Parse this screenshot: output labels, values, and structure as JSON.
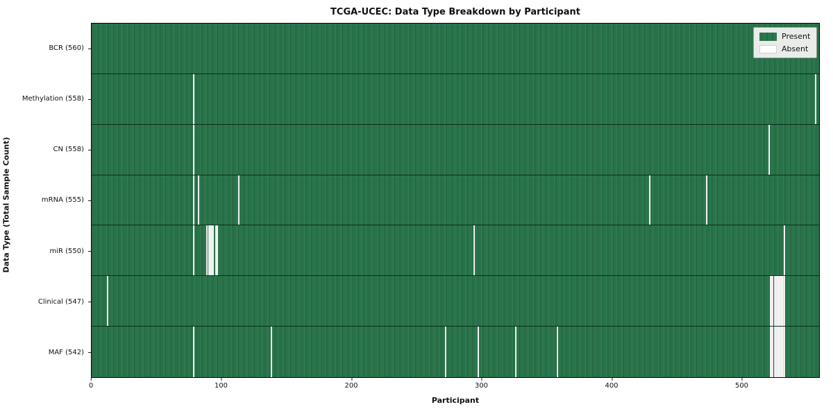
{
  "title": "TCGA-UCEC: Data Type Breakdown by Participant",
  "xlabel": "Participant",
  "ylabel": "Data Type (Total Sample Count)",
  "legend": {
    "present_label": "Present",
    "absent_label": "Absent"
  },
  "colors": {
    "present_green": "#2e7d4e",
    "present_green_dark": "#1e5e3a",
    "present_green_light": "#35855a",
    "absent_white": "#ffffff",
    "legend_bg": "#e9ece9",
    "axis_color": "#000000"
  },
  "x_ticks": [
    0,
    100,
    200,
    300,
    400,
    500
  ],
  "chart_data": {
    "type": "heatmap",
    "title": "TCGA-UCEC: Data Type Breakdown by Participant",
    "xlabel": "Participant",
    "ylabel": "Data Type (Total Sample Count)",
    "x_range": [
      0,
      560
    ],
    "total_participants": 560,
    "grid": false,
    "legend_position": "upper right",
    "legend_entries": [
      "Present",
      "Absent"
    ],
    "cell_states": {
      "present": 1,
      "absent": 0
    },
    "rows": [
      {
        "label": "BCR (560)",
        "data_type": "BCR",
        "present_count": 560,
        "absent_count": 0,
        "absent_participants": []
      },
      {
        "label": "Methylation (558)",
        "data_type": "Methylation",
        "present_count": 558,
        "absent_count": 2,
        "absent_participants": [
          78,
          557
        ]
      },
      {
        "label": "CN (558)",
        "data_type": "CN",
        "present_count": 558,
        "absent_count": 2,
        "absent_participants": [
          78,
          521
        ]
      },
      {
        "label": "mRNA (555)",
        "data_type": "mRNA",
        "present_count": 555,
        "absent_count": 5,
        "absent_participants": [
          78,
          82,
          113,
          429,
          473
        ]
      },
      {
        "label": "miR (550)",
        "data_type": "miR",
        "present_count": 550,
        "absent_count": 10,
        "absent_participants": [
          78,
          88,
          90,
          91,
          92,
          93,
          95,
          96,
          294,
          533
        ]
      },
      {
        "label": "Clinical (547)",
        "data_type": "Clinical",
        "present_count": 547,
        "absent_count": 13,
        "absent_participants": [
          12,
          522,
          523,
          524,
          525,
          526,
          527,
          528,
          529,
          530,
          531,
          532,
          533
        ]
      },
      {
        "label": "MAF (542)",
        "data_type": "MAF",
        "present_count": 542,
        "absent_count": 18,
        "absent_participants": [
          78,
          138,
          272,
          297,
          326,
          358,
          522,
          523,
          524,
          525,
          526,
          527,
          528,
          529,
          530,
          531,
          532,
          533
        ]
      }
    ]
  }
}
